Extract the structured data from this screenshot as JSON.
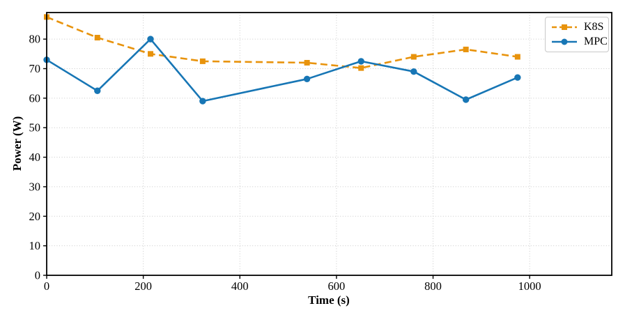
{
  "chart_data": {
    "type": "line",
    "title": "",
    "xlabel": "Time (s)",
    "ylabel": "Power (W)",
    "x": [
      0,
      105,
      215,
      323,
      539,
      651,
      760,
      868,
      975
    ],
    "series": [
      {
        "name": "K8S",
        "color": "#E8930C",
        "line_style": "dashed",
        "marker": "square",
        "values": [
          87.5,
          80.5,
          75.0,
          72.5,
          72.0,
          70.2,
          74.0,
          76.5,
          74.0
        ]
      },
      {
        "name": "MPC",
        "color": "#1776B5",
        "line_style": "solid",
        "marker": "circle",
        "values": [
          73.0,
          62.5,
          80.0,
          59.0,
          66.5,
          72.5,
          69.0,
          59.5,
          67.0
        ]
      }
    ],
    "xlim": [
      0,
      1170
    ],
    "ylim": [
      0,
      89
    ],
    "xticks": [
      0,
      200,
      400,
      600,
      800,
      1000
    ],
    "yticks": [
      0,
      10,
      20,
      30,
      40,
      50,
      60,
      70,
      80
    ],
    "grid": true,
    "grid_style": "dotted",
    "grid_color": "#c9c9c9",
    "axis_color": "#000000",
    "legend_position": "upper right"
  }
}
